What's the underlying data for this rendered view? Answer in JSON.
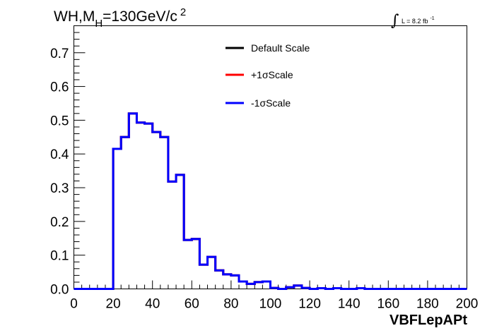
{
  "chart_data": {
    "type": "line",
    "title": {
      "main": "WH,M",
      "subscript": "H",
      "rest": "=130GeV/c",
      "superscript": "2"
    },
    "luminosity": {
      "integral": "∫",
      "text": "L = 8.2 fb",
      "superscript": "-1"
    },
    "xlabel": "VBFLepAPt",
    "ylabel": "",
    "xlim": [
      0,
      200
    ],
    "ylim": [
      0,
      0.78
    ],
    "x_ticks": [
      0,
      20,
      40,
      60,
      80,
      100,
      120,
      140,
      160,
      180,
      200
    ],
    "x_tick_labels": [
      "0",
      "20",
      "40",
      "60",
      "80",
      "100",
      "120",
      "140",
      "160",
      "180",
      "200"
    ],
    "y_ticks": [
      0,
      0.1,
      0.2,
      0.3,
      0.4,
      0.5,
      0.6,
      0.7
    ],
    "y_tick_labels": [
      "0.0",
      "0.1",
      "0.2",
      "0.3",
      "0.4",
      "0.5",
      "0.6",
      "0.7"
    ],
    "bin_edges": [
      0,
      4,
      8,
      12,
      16,
      20,
      24,
      28,
      32,
      36,
      40,
      44,
      48,
      52,
      56,
      60,
      64,
      68,
      72,
      76,
      80,
      84,
      88,
      92,
      96,
      100,
      104,
      108,
      112,
      116,
      120,
      124,
      128,
      132,
      136,
      140,
      144,
      148,
      152,
      156,
      160,
      164,
      168,
      172,
      176,
      180,
      184,
      188,
      192,
      196,
      200
    ],
    "series": [
      {
        "name": "Default Scale",
        "color": "#000000",
        "values": [
          0,
          0,
          0,
          0,
          0,
          0.415,
          0.45,
          0.52,
          0.493,
          0.49,
          0.465,
          0.45,
          0.318,
          0.338,
          0.145,
          0.148,
          0.072,
          0.095,
          0.055,
          0.043,
          0.04,
          0.022,
          0.015,
          0.02,
          0.022,
          0.003,
          0.0,
          0.005,
          0.01,
          0.003,
          0.0,
          0.002,
          0.0,
          0.002,
          0.0,
          0.0,
          0.002,
          0,
          0,
          0,
          0,
          0,
          0,
          0,
          0,
          0,
          0,
          0,
          0,
          0
        ]
      },
      {
        "name": "+1σScale",
        "color": "#ff0000",
        "values": [
          0,
          0,
          0,
          0,
          0,
          0.415,
          0.45,
          0.52,
          0.493,
          0.49,
          0.465,
          0.45,
          0.318,
          0.338,
          0.145,
          0.148,
          0.072,
          0.095,
          0.055,
          0.043,
          0.04,
          0.022,
          0.015,
          0.02,
          0.022,
          0.003,
          0.0,
          0.005,
          0.01,
          0.003,
          0.0,
          0.002,
          0.0,
          0.002,
          0.0,
          0.0,
          0.002,
          0,
          0,
          0,
          0,
          0,
          0,
          0,
          0,
          0,
          0,
          0,
          0,
          0
        ]
      },
      {
        "name": "-1σScale",
        "color": "#0000ff",
        "values": [
          0,
          0,
          0,
          0,
          0,
          0.415,
          0.45,
          0.52,
          0.493,
          0.49,
          0.465,
          0.45,
          0.318,
          0.338,
          0.145,
          0.148,
          0.072,
          0.095,
          0.055,
          0.043,
          0.04,
          0.022,
          0.015,
          0.02,
          0.022,
          0.003,
          0.0,
          0.005,
          0.01,
          0.003,
          0.0,
          0.002,
          0.0,
          0.002,
          0.0,
          0.0,
          0.002,
          0,
          0,
          0,
          0,
          0,
          0,
          0,
          0,
          0,
          0,
          0,
          0,
          0
        ]
      }
    ],
    "legend_position": "top-center",
    "grid": false
  }
}
